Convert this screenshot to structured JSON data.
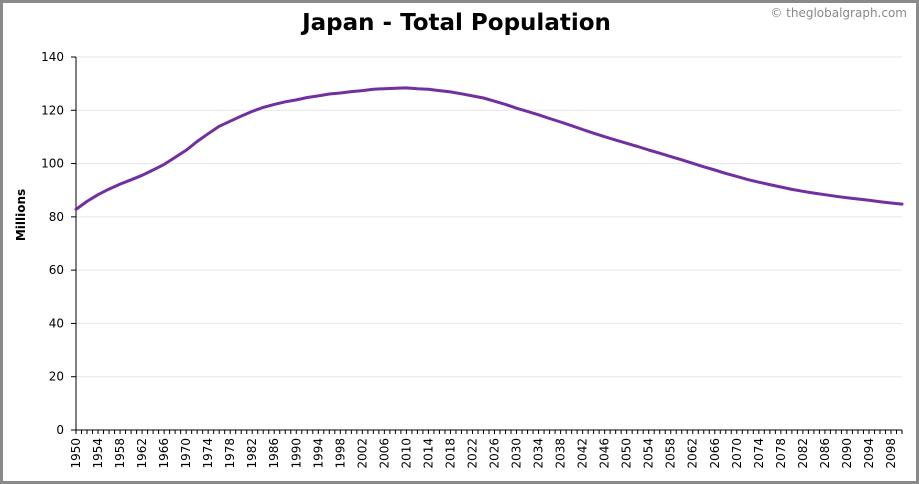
{
  "credit": "© theglobalgraph.com",
  "chart_data": {
    "type": "line",
    "title": "Japan - Total Population",
    "xlabel": "",
    "ylabel": "Millions",
    "ylim": [
      0,
      140
    ],
    "yticks": [
      0,
      20,
      40,
      60,
      80,
      100,
      120,
      140
    ],
    "xlim": [
      1950,
      2100
    ],
    "xticks": [
      1950,
      1954,
      1958,
      1962,
      1966,
      1970,
      1974,
      1978,
      1982,
      1986,
      1990,
      1994,
      1998,
      2002,
      2006,
      2010,
      2014,
      2018,
      2022,
      2026,
      2030,
      2034,
      2038,
      2042,
      2046,
      2050,
      2054,
      2058,
      2062,
      2066,
      2070,
      2074,
      2078,
      2082,
      2086,
      2090,
      2094,
      2098
    ],
    "grid": true,
    "line_color": "#7030a0",
    "series": [
      {
        "x": [
          1950,
          1952,
          1954,
          1956,
          1958,
          1960,
          1962,
          1964,
          1966,
          1968,
          1970,
          1972,
          1974,
          1976,
          1978,
          1980,
          1982,
          1984,
          1986,
          1988,
          1990,
          1992,
          1994,
          1996,
          1998,
          2000,
          2002,
          2004,
          2006,
          2008,
          2010,
          2012,
          2014,
          2016,
          2018,
          2020,
          2022,
          2024,
          2026,
          2028,
          2030,
          2032,
          2034,
          2036,
          2038,
          2040,
          2042,
          2044,
          2046,
          2048,
          2050,
          2052,
          2054,
          2056,
          2058,
          2060,
          2062,
          2064,
          2066,
          2068,
          2070,
          2072,
          2074,
          2076,
          2078,
          2080,
          2082,
          2084,
          2086,
          2088,
          2090,
          2092,
          2094,
          2096,
          2098,
          2100
        ],
        "values": [
          82.8,
          85.8,
          88.3,
          90.4,
          92.3,
          93.9,
          95.6,
          97.6,
          99.7,
          102.3,
          105.0,
          108.3,
          111.2,
          114.0,
          115.9,
          117.8,
          119.6,
          121.1,
          122.2,
          123.2,
          123.9,
          124.8,
          125.4,
          126.1,
          126.5,
          127.0,
          127.4,
          127.9,
          128.1,
          128.3,
          128.4,
          128.1,
          127.9,
          127.4,
          126.9,
          126.2,
          125.4,
          124.6,
          123.4,
          122.2,
          120.8,
          119.6,
          118.3,
          116.9,
          115.6,
          114.2,
          112.8,
          111.4,
          110.1,
          108.8,
          107.6,
          106.4,
          105.1,
          103.9,
          102.6,
          101.4,
          100.1,
          98.8,
          97.6,
          96.3,
          95.2,
          94.0,
          93.0,
          92.1,
          91.2,
          90.3,
          89.6,
          88.9,
          88.3,
          87.7,
          87.2,
          86.7,
          86.2,
          85.7,
          85.2,
          84.8
        ]
      }
    ]
  }
}
